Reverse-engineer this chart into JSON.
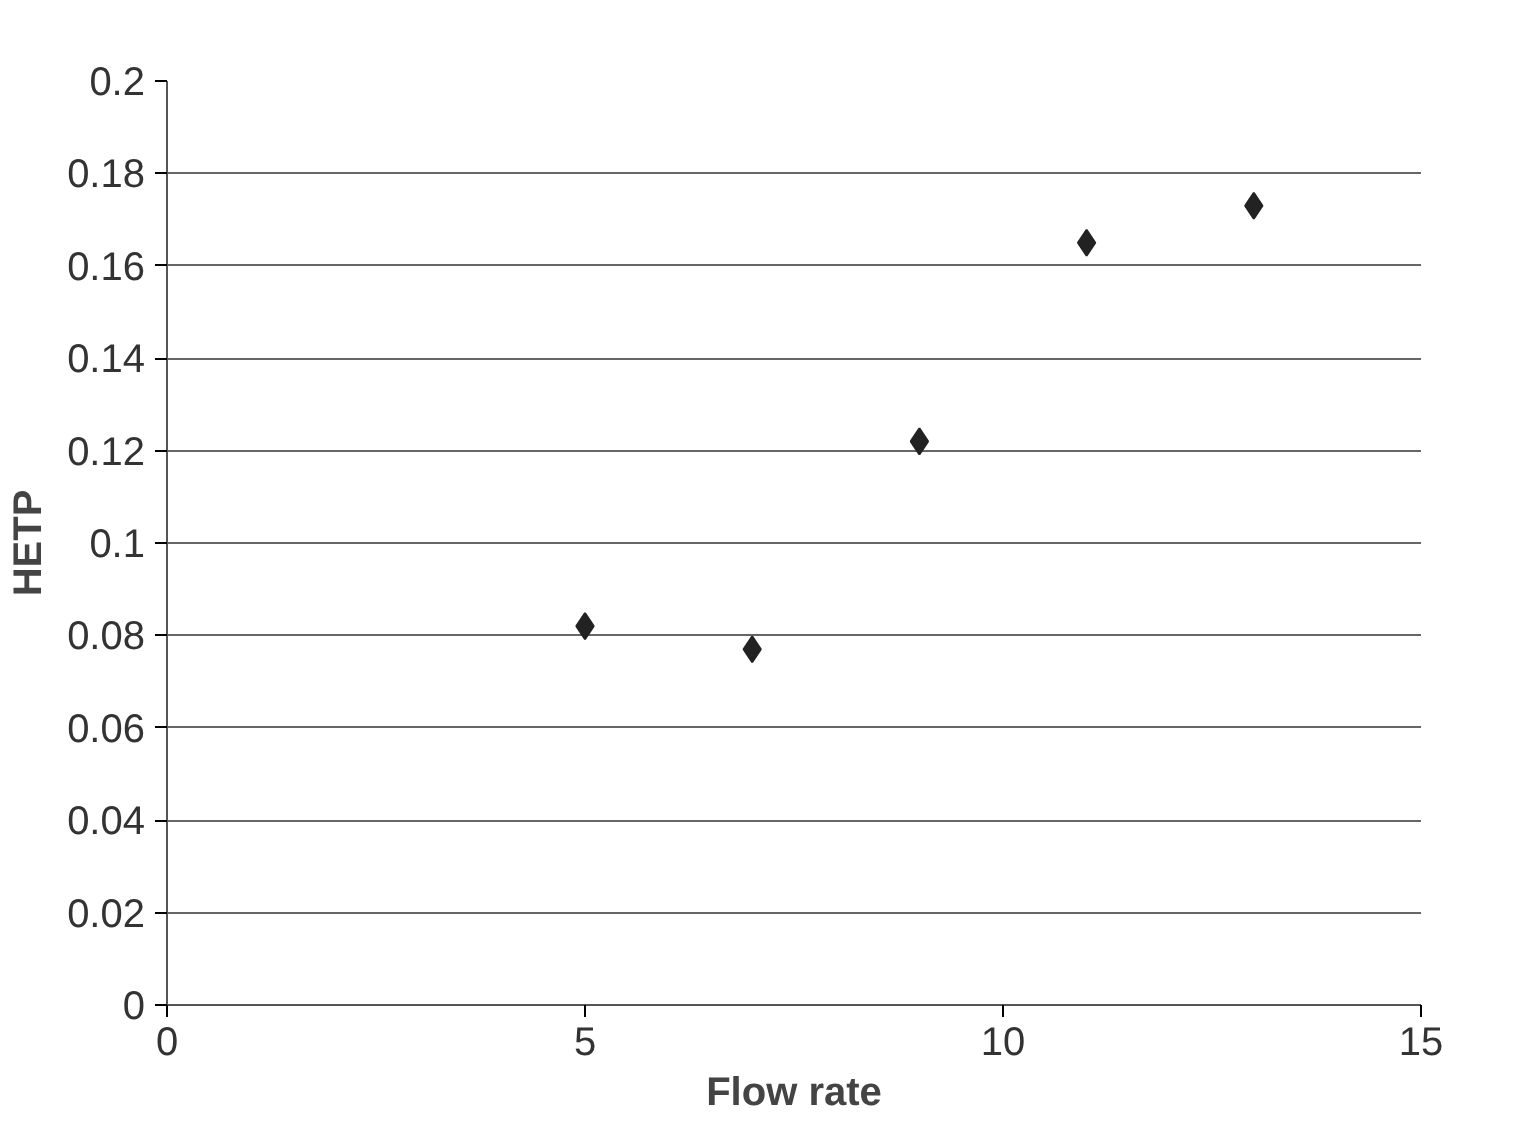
{
  "chart_data": {
    "type": "scatter",
    "xlabel": "Flow rate",
    "ylabel": "HETP",
    "x": [
      5,
      7,
      9,
      11,
      13
    ],
    "series": [
      {
        "color": "#222222",
        "values": [
          0.082,
          0.077,
          0.122,
          0.165,
          0.173
        ]
      }
    ],
    "xlim": [
      0,
      15
    ],
    "xticks": [
      0,
      5,
      10,
      15
    ],
    "ylim": [
      0,
      0.2
    ],
    "yticks": [
      0,
      0.02,
      0.04,
      0.06,
      0.08,
      0.1,
      0.12,
      0.14,
      0.16,
      0.18,
      0.2
    ],
    "grid": "y",
    "marker": "diamond"
  }
}
